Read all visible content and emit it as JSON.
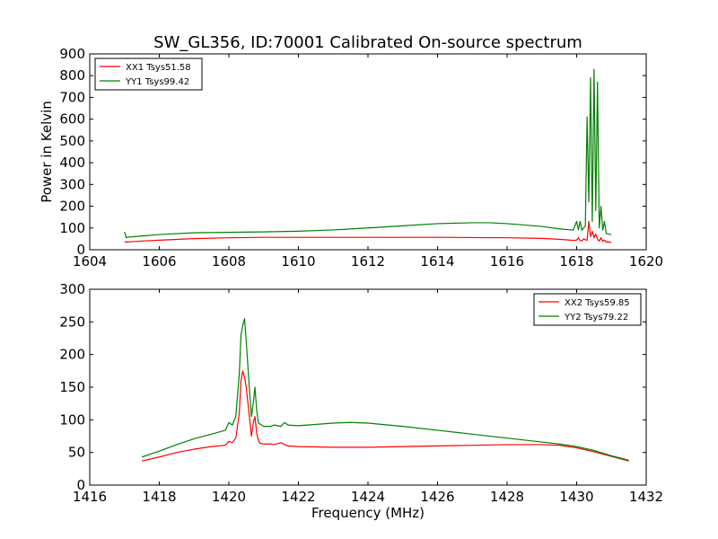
{
  "figure": {
    "title": "SW_GL356, ID:70001 Calibrated On-source spectrum"
  },
  "chart_data": [
    {
      "type": "line",
      "title": "SW_GL356, ID:70001 Calibrated On-source spectrum",
      "xlabel": "",
      "ylabel": "Power in Kelvin",
      "xlim": [
        1604,
        1620
      ],
      "ylim": [
        0,
        900
      ],
      "xticks": [
        "1604",
        "1606",
        "1608",
        "1610",
        "1612",
        "1614",
        "1616",
        "1618",
        "1620"
      ],
      "yticks": [
        "0",
        "100",
        "200",
        "300",
        "400",
        "500",
        "600",
        "700",
        "800",
        "900"
      ],
      "legend_position": "top-left",
      "series": [
        {
          "name": "XX1 Tsys51.58",
          "color": "#ff0000",
          "x": [
            1605.0,
            1605.05,
            1605.2,
            1605.5,
            1606.0,
            1607.0,
            1608.0,
            1609.0,
            1610.0,
            1611.0,
            1612.0,
            1613.0,
            1614.0,
            1615.0,
            1616.0,
            1617.0,
            1617.5,
            1617.9,
            1618.0,
            1618.05,
            1618.1,
            1618.15,
            1618.2,
            1618.3,
            1618.35,
            1618.4,
            1618.45,
            1618.5,
            1618.55,
            1618.6,
            1618.65,
            1618.7,
            1618.75,
            1618.8,
            1618.85,
            1618.9,
            1619.0
          ],
          "y": [
            38,
            35,
            37,
            40,
            44,
            51,
            55,
            57,
            57,
            57,
            57,
            57,
            57,
            56,
            55,
            52,
            48,
            43,
            44,
            55,
            42,
            41,
            50,
            43,
            130,
            60,
            85,
            55,
            72,
            48,
            40,
            55,
            38,
            45,
            35,
            36,
            33
          ]
        },
        {
          "name": "YY1 Tsys99.42",
          "color": "#008000",
          "x": [
            1605.0,
            1605.05,
            1605.1,
            1605.5,
            1606.0,
            1607.0,
            1608.0,
            1609.0,
            1610.0,
            1611.0,
            1612.0,
            1613.0,
            1614.0,
            1615.0,
            1615.5,
            1616.0,
            1617.0,
            1617.5,
            1617.9,
            1618.0,
            1618.05,
            1618.1,
            1618.15,
            1618.25,
            1618.3,
            1618.35,
            1618.4,
            1618.45,
            1618.5,
            1618.55,
            1618.6,
            1618.65,
            1618.7,
            1618.75,
            1618.8,
            1618.85,
            1618.9,
            1619.0
          ],
          "y": [
            82,
            55,
            58,
            63,
            70,
            78,
            80,
            82,
            85,
            91,
            100,
            110,
            120,
            124,
            124,
            120,
            107,
            96,
            90,
            130,
            92,
            130,
            90,
            110,
            610,
            220,
            790,
            130,
            830,
            180,
            770,
            100,
            200,
            90,
            130,
            75,
            72,
            70
          ]
        }
      ]
    },
    {
      "type": "line",
      "title": "",
      "xlabel": "Frequency (MHz)",
      "ylabel": "",
      "xlim": [
        1416,
        1432
      ],
      "ylim": [
        0,
        300
      ],
      "xticks": [
        "1416",
        "1418",
        "1420",
        "1422",
        "1424",
        "1426",
        "1428",
        "1430",
        "1432"
      ],
      "yticks": [
        "0",
        "50",
        "100",
        "150",
        "200",
        "250",
        "300"
      ],
      "legend_position": "top-right",
      "series": [
        {
          "name": "XX2 Tsys59.85",
          "color": "#ff0000",
          "x": [
            1417.5,
            1418.0,
            1418.5,
            1419.0,
            1419.5,
            1419.9,
            1420.0,
            1420.1,
            1420.2,
            1420.3,
            1420.35,
            1420.4,
            1420.45,
            1420.5,
            1420.6,
            1420.65,
            1420.7,
            1420.75,
            1420.8,
            1420.85,
            1420.9,
            1421.0,
            1421.2,
            1421.3,
            1421.5,
            1421.6,
            1421.7,
            1422.0,
            1423.0,
            1424.0,
            1425.0,
            1426.0,
            1427.0,
            1428.0,
            1429.0,
            1429.5,
            1430.0,
            1430.5,
            1431.0,
            1431.5
          ],
          "y": [
            37,
            43,
            50,
            55,
            59,
            61,
            67,
            65,
            72,
            110,
            160,
            175,
            165,
            150,
            100,
            75,
            95,
            105,
            80,
            68,
            64,
            63,
            63,
            62,
            65,
            62,
            60,
            59,
            58,
            58,
            59,
            60,
            61,
            62,
            62,
            61,
            57,
            51,
            44,
            37
          ]
        },
        {
          "name": "YY2 Tsys79.22",
          "color": "#008000",
          "x": [
            1417.5,
            1418.0,
            1418.5,
            1419.0,
            1419.5,
            1419.9,
            1420.0,
            1420.1,
            1420.2,
            1420.3,
            1420.35,
            1420.4,
            1420.45,
            1420.5,
            1420.6,
            1420.65,
            1420.7,
            1420.75,
            1420.8,
            1420.85,
            1421.0,
            1421.2,
            1421.3,
            1421.5,
            1421.6,
            1421.7,
            1422.0,
            1423.0,
            1423.5,
            1424.0,
            1425.0,
            1426.0,
            1427.0,
            1428.0,
            1429.0,
            1429.5,
            1430.0,
            1430.5,
            1431.0,
            1431.5
          ],
          "y": [
            43,
            52,
            62,
            71,
            78,
            84,
            96,
            92,
            105,
            170,
            230,
            245,
            255,
            220,
            140,
            105,
            125,
            150,
            115,
            95,
            90,
            90,
            92,
            90,
            96,
            92,
            91,
            95,
            96,
            95,
            90,
            84,
            78,
            72,
            66,
            63,
            59,
            53,
            45,
            38
          ]
        }
      ]
    }
  ]
}
